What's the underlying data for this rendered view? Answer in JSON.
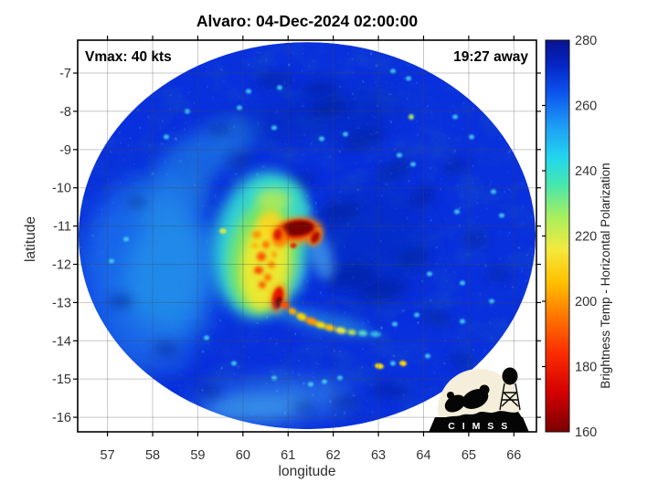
{
  "title": "Alvaro: 04-Dec-2024 02:00:00",
  "overlay": {
    "vmax_label": "Vmax: 40 kts",
    "eta_label": "19:27 away"
  },
  "axes": {
    "xlabel": "longitude",
    "ylabel": "latitude",
    "x_ticks": [
      57,
      58,
      59,
      60,
      61,
      62,
      63,
      64,
      65,
      66
    ],
    "y_ticks": [
      -7,
      -8,
      -9,
      -10,
      -11,
      -12,
      -13,
      -14,
      -15,
      -16
    ]
  },
  "colorbar": {
    "label": "Brightness Temp - Horizontal Polarization",
    "min": 160,
    "max": 280,
    "ticks": [
      160,
      180,
      200,
      220,
      240,
      260,
      280
    ],
    "notch_ticks": [
      180,
      200,
      220,
      240,
      260
    ],
    "stops": [
      [
        160,
        "#7a0000"
      ],
      [
        172,
        "#d40000"
      ],
      [
        184,
        "#fb2c00"
      ],
      [
        196,
        "#ff7a00"
      ],
      [
        206,
        "#ffc100"
      ],
      [
        216,
        "#f4e93e"
      ],
      [
        226,
        "#a6ef5e"
      ],
      [
        236,
        "#45e6b0"
      ],
      [
        244,
        "#22d6ee"
      ],
      [
        254,
        "#1e9bf5"
      ],
      [
        264,
        "#0b53ee"
      ],
      [
        272,
        "#0527c8"
      ],
      [
        280,
        "#081290"
      ]
    ]
  },
  "logo": {
    "text": "C I M S S"
  },
  "chart_data": {
    "type": "heatmap",
    "title": "Alvaro: 04-Dec-2024 02:00:00",
    "storm_name": "Alvaro",
    "datetime": "04-Dec-2024 02:00:00",
    "vmax_kts": 40,
    "overpass_countdown": "19:27 away",
    "value_label": "Brightness Temp - Horizontal Polarization",
    "value_range_K": [
      160,
      280
    ],
    "xlabel": "longitude",
    "ylabel": "latitude",
    "xlim": [
      56.34,
      66.5
    ],
    "ylim": [
      -16.38,
      -6.14
    ],
    "x_ticks": [
      57,
      58,
      59,
      60,
      61,
      62,
      63,
      64,
      65,
      66
    ],
    "y_ticks": [
      -7,
      -8,
      -9,
      -10,
      -11,
      -12,
      -13,
      -14,
      -15,
      -16
    ],
    "swath_center": {
      "lon": 61.42,
      "lat": -11.25
    },
    "swath_radius_deg": 5.06,
    "deep_convection_core": {
      "lon": 61.2,
      "lat": -11.1,
      "approx_min_K": 165
    },
    "background_field_K": 265,
    "grid": true,
    "legend_position": "right-colorbar"
  },
  "storm_image": {
    "base_color": "#0930dd",
    "blobs": [
      [
        165,
        295,
        75,
        100,
        0,
        "#1d74ee",
        0.8,
        14
      ],
      [
        182,
        300,
        45,
        72,
        10,
        "#2fb4e8",
        0.45,
        12
      ],
      [
        225,
        168,
        65,
        26,
        -28,
        "#2596e8",
        0.5,
        9
      ],
      [
        188,
        218,
        48,
        20,
        -18,
        "#2da0e8",
        0.4,
        9
      ],
      [
        405,
        268,
        62,
        66,
        0,
        "#0627b8",
        0.45,
        16
      ],
      [
        350,
        128,
        90,
        26,
        -8,
        "#0527ae",
        0.4,
        12
      ],
      [
        300,
        438,
        88,
        24,
        -4,
        "#3d9bee",
        0.55,
        12
      ],
      [
        282,
        448,
        55,
        13,
        -4,
        "#55c4ee",
        0.4,
        8
      ],
      [
        160,
        378,
        50,
        30,
        20,
        "#1b66e8",
        0.5,
        10
      ],
      [
        360,
        118,
        20,
        9,
        -15,
        "#041a8c",
        0.45,
        6
      ],
      [
        398,
        152,
        24,
        11,
        -20,
        "#041a8c",
        0.45,
        6
      ],
      [
        432,
        186,
        20,
        10,
        -25,
        "#041a8c",
        0.45,
        6
      ],
      [
        462,
        216,
        16,
        9,
        -30,
        "#041a8c",
        0.45,
        6
      ],
      [
        300,
        88,
        22,
        8,
        0,
        "#041a8c",
        0.45,
        6
      ],
      [
        350,
        96,
        20,
        8,
        -5,
        "#041a8c",
        0.45,
        6
      ],
      [
        262,
        175,
        16,
        7,
        -10,
        "#041a8c",
        0.45,
        6
      ],
      [
        240,
        142,
        13,
        6,
        0,
        "#041a8c",
        0.45,
        6
      ],
      [
        330,
        198,
        16,
        8,
        -15,
        "#041a8c",
        0.45,
        6
      ],
      [
        372,
        232,
        22,
        11,
        -10,
        "#041a8c",
        0.45,
        6
      ],
      [
        418,
        318,
        26,
        12,
        -8,
        "#041a8c",
        0.45,
        6
      ],
      [
        382,
        302,
        28,
        13,
        -5,
        "#041a8c",
        0.45,
        6
      ],
      [
        452,
        282,
        17,
        9,
        -15,
        "#041a8c",
        0.45,
        6
      ],
      [
        498,
        182,
        15,
        8,
        -20,
        "#041a8c",
        0.45,
        6
      ],
      [
        520,
        262,
        14,
        8,
        0,
        "#041a8c",
        0.45,
        6
      ],
      [
        478,
        348,
        16,
        8,
        10,
        "#041a8c",
        0.45,
        6
      ],
      [
        428,
        428,
        20,
        8,
        5,
        "#041a8c",
        0.45,
        6
      ],
      [
        378,
        440,
        16,
        7,
        0,
        "#041a8c",
        0.45,
        6
      ],
      [
        332,
        446,
        13,
        6,
        0,
        "#041a8c",
        0.45,
        6
      ],
      [
        150,
        222,
        12,
        7,
        0,
        "#041a8c",
        0.45,
        6
      ],
      [
        132,
        330,
        13,
        8,
        0,
        "#041a8c",
        0.45,
        6
      ],
      [
        182,
        382,
        14,
        8,
        10,
        "#041a8c",
        0.45,
        6
      ],
      [
        230,
        428,
        13,
        7,
        5,
        "#041a8c",
        0.45,
        6
      ],
      [
        505,
        395,
        14,
        7,
        15,
        "#041a8c",
        0.45,
        6
      ],
      [
        545,
        300,
        12,
        7,
        0,
        "#041a8c",
        0.45,
        6
      ],
      [
        286,
        268,
        52,
        80,
        8,
        "#35e2d5",
        0.9,
        8
      ],
      [
        303,
        218,
        30,
        22,
        0,
        "#3fe0bd",
        0.85,
        6
      ],
      [
        322,
        232,
        18,
        10,
        -10,
        "#3fd8c8",
        0.7,
        5
      ],
      [
        352,
        282,
        12,
        26,
        -15,
        "#49a8ee",
        0.7,
        6
      ],
      [
        318,
        300,
        14,
        18,
        0,
        "#49c2ea",
        0.6,
        6
      ],
      [
        288,
        282,
        38,
        62,
        8,
        "#8ce94e",
        0.8,
        6
      ],
      [
        299,
        219,
        18,
        12,
        0,
        "#c6ea46",
        0.7,
        5
      ],
      [
        290,
        290,
        26,
        50,
        6,
        "#ffe926",
        0.85,
        5
      ],
      [
        296,
        246,
        14,
        16,
        0,
        "#ffd51e",
        0.8,
        4
      ],
      [
        281,
        257,
        5,
        4,
        0,
        "#ff8c00",
        1,
        2
      ],
      [
        291,
        268,
        4,
        4,
        0,
        "#ff6a00",
        1,
        2
      ],
      [
        286,
        281,
        5,
        5,
        0,
        "#ff5000",
        1,
        2
      ],
      [
        297,
        290,
        4,
        4,
        0,
        "#ff8000",
        1,
        2
      ],
      [
        283,
        296,
        5,
        4,
        0,
        "#ff4000",
        1,
        2
      ],
      [
        293,
        304,
        4,
        4,
        0,
        "#ff7000",
        1,
        2
      ],
      [
        287,
        312,
        4,
        4,
        0,
        "#ff5800",
        1,
        2
      ],
      [
        279,
        269,
        4,
        3,
        0,
        "#ffb000",
        1,
        2
      ],
      [
        300,
        279,
        3,
        3,
        0,
        "#ff9000",
        1,
        2
      ],
      [
        326,
        253,
        27,
        14,
        -6,
        "#ff8800",
        0.95,
        4
      ],
      [
        345,
        260,
        7,
        10,
        25,
        "#ff8800",
        0.95,
        3
      ],
      [
        325,
        251,
        21,
        10.5,
        -6,
        "#e22800",
        1,
        2.5
      ],
      [
        326,
        250,
        17,
        8,
        -6,
        "#7c0404",
        1,
        1.5
      ],
      [
        345,
        260,
        4.5,
        7,
        25,
        "#b01000",
        1,
        1.5
      ],
      [
        306,
        260,
        8,
        11,
        10,
        "#ff7a00",
        0.95,
        3
      ],
      [
        304,
        257,
        4.5,
        6,
        10,
        "#d81c00",
        1,
        1.5
      ],
      [
        321,
        269,
        3.5,
        3,
        0,
        "#e03000",
        1,
        1
      ],
      [
        305,
        327,
        9,
        16,
        10,
        "#ff9800",
        0.9,
        4
      ],
      [
        304,
        327,
        6,
        13,
        10,
        "#e21800",
        1,
        1.5
      ],
      [
        305,
        331,
        3.5,
        6,
        10,
        "#7e0202",
        1,
        1
      ],
      [
        352,
        352,
        58,
        10,
        13,
        "#2fb0e0",
        0.5,
        6
      ],
      [
        312,
        334,
        5,
        4,
        20,
        "#ff5000",
        1,
        1.5
      ],
      [
        320,
        341,
        5,
        3.5,
        22,
        "#ffae00",
        1,
        1.5
      ],
      [
        330,
        347,
        6,
        4,
        24,
        "#ffd800",
        1,
        1.5
      ],
      [
        341,
        352,
        7,
        4,
        18,
        "#ff9400",
        1,
        1.5
      ],
      [
        351,
        356,
        6,
        3.5,
        14,
        "#ffe100",
        1,
        1.5
      ],
      [
        361,
        359,
        6,
        3.5,
        12,
        "#ffc200",
        1,
        1.5
      ],
      [
        373,
        362,
        6,
        3.5,
        10,
        "#eeeb3a",
        1,
        1.5
      ],
      [
        385,
        364,
        5,
        3,
        8,
        "#b5e94c",
        1,
        1.5
      ],
      [
        397,
        365,
        5,
        3,
        6,
        "#5fe2c0",
        1,
        1.5
      ],
      [
        411,
        366,
        6,
        3,
        4,
        "#35c2e8",
        1,
        1.5
      ],
      [
        262,
        118,
        3,
        2.5,
        0,
        "#49d6f2",
        0.9,
        1
      ],
      [
        272,
        100,
        3,
        2.5,
        0,
        "#49d6f2",
        0.9,
        1
      ],
      [
        306,
        96,
        3,
        2.5,
        0,
        "#49d6f2",
        0.9,
        1
      ],
      [
        430,
        78,
        3,
        2.5,
        0,
        "#49d6f2",
        0.9,
        1
      ],
      [
        447,
        86,
        3,
        2.5,
        0,
        "#49d6f2",
        0.9,
        1
      ],
      [
        352,
        152,
        3,
        2.5,
        0,
        "#49d6f2",
        0.9,
        1
      ],
      [
        378,
        147,
        3,
        2.5,
        0,
        "#49d6f2",
        0.9,
        1
      ],
      [
        300,
        140,
        3,
        2.5,
        0,
        "#49d6f2",
        0.9,
        1
      ],
      [
        498,
        128,
        3,
        2.5,
        0,
        "#49d6f2",
        0.9,
        1
      ],
      [
        516,
        150,
        3,
        2.5,
        0,
        "#49d6f2",
        0.9,
        1
      ],
      [
        540,
        210,
        3,
        2.5,
        0,
        "#49d6f2",
        0.9,
        1
      ],
      [
        549,
        236,
        3,
        2.5,
        0,
        "#49d6f2",
        0.9,
        1
      ],
      [
        500,
        232,
        3,
        2.5,
        0,
        "#49d6f2",
        0.9,
        1
      ],
      [
        437,
        170,
        3,
        2.5,
        0,
        "#49d6f2",
        0.9,
        1
      ],
      [
        452,
        180,
        3,
        2.5,
        0,
        "#49d6f2",
        0.9,
        1
      ],
      [
        470,
        300,
        3,
        2.5,
        0,
        "#49d6f2",
        0.9,
        1
      ],
      [
        506,
        310,
        3,
        2.5,
        0,
        "#49d6f2",
        0.9,
        1
      ],
      [
        538,
        330,
        3,
        2.5,
        0,
        "#49d6f2",
        0.9,
        1
      ],
      [
        432,
        355,
        3,
        2.5,
        0,
        "#49d6f2",
        0.9,
        1
      ],
      [
        456,
        345,
        3,
        2.5,
        0,
        "#49d6f2",
        0.9,
        1
      ],
      [
        506,
        352,
        3,
        2.5,
        0,
        "#49d6f2",
        0.9,
        1
      ],
      [
        468,
        390,
        3,
        2.5,
        0,
        "#49d6f2",
        0.9,
        1
      ],
      [
        430,
        398,
        3,
        2.5,
        0,
        "#49d6f2",
        0.9,
        1
      ],
      [
        372,
        414,
        3,
        2.5,
        0,
        "#49d6f2",
        0.9,
        1
      ],
      [
        340,
        421,
        3,
        2.5,
        0,
        "#49d6f2",
        0.9,
        1
      ],
      [
        300,
        414,
        3,
        2.5,
        0,
        "#49d6f2",
        0.9,
        1
      ],
      [
        256,
        398,
        3,
        2.5,
        0,
        "#49d6f2",
        0.9,
        1
      ],
      [
        226,
        370,
        3,
        2.5,
        0,
        "#49d6f2",
        0.9,
        1
      ],
      [
        138,
        262,
        3,
        2.5,
        0,
        "#49d6f2",
        0.9,
        1
      ],
      [
        122,
        286,
        3,
        2.5,
        0,
        "#49d6f2",
        0.9,
        1
      ],
      [
        205,
        122,
        3,
        2.5,
        0,
        "#49d6f2",
        0.9,
        1
      ],
      [
        182,
        150,
        3,
        2.5,
        0,
        "#49d6f2",
        0.9,
        1
      ],
      [
        355,
        418,
        3,
        2.5,
        0,
        "#49d6f2",
        0.9,
        1
      ],
      [
        244,
        253,
        4,
        3,
        0,
        "#c8e850",
        1,
        1
      ],
      [
        450,
        128,
        3,
        3,
        0,
        "#9fe060",
        1,
        1
      ],
      [
        415,
        401,
        5,
        3,
        10,
        "#ffe000",
        1,
        1
      ],
      [
        441,
        398,
        4,
        3,
        10,
        "#ffd800",
        1,
        1
      ]
    ]
  }
}
